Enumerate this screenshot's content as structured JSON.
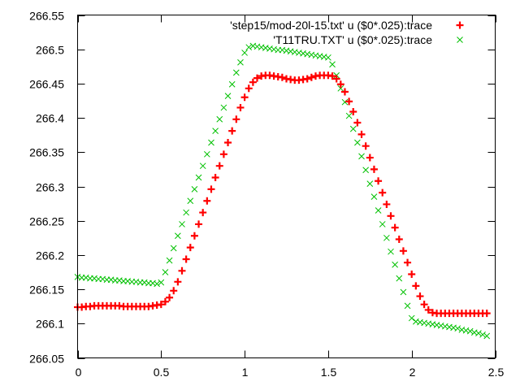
{
  "chart_data": {
    "type": "scatter",
    "title": "",
    "xlabel": "",
    "ylabel": "",
    "xlim": [
      0,
      2.5
    ],
    "ylim": [
      266.05,
      266.55
    ],
    "grid": false,
    "legend_position": "top-right",
    "x_ticks": [
      "0",
      "0.5",
      "1",
      "1.5",
      "2",
      "2.5"
    ],
    "x_tick_values": [
      0,
      0.5,
      1,
      1.5,
      2,
      2.5
    ],
    "y_ticks": [
      "266.05",
      "266.1",
      "266.15",
      "266.2",
      "266.25",
      "266.3",
      "266.35",
      "266.4",
      "266.45",
      "266.5",
      "266.55"
    ],
    "y_tick_values": [
      266.05,
      266.1,
      266.15,
      266.2,
      266.25,
      266.3,
      266.35,
      266.4,
      266.45,
      266.5,
      266.55
    ],
    "x_start": 0,
    "x_step": 0.025,
    "series": [
      {
        "name": "'step15/mod-20l-15.txt' u ($0*.025):trace",
        "marker": "plus",
        "color": "#ff0000",
        "y": [
          266.124,
          266.124,
          266.125,
          266.125,
          266.126,
          266.126,
          266.126,
          266.126,
          266.126,
          266.126,
          266.126,
          266.125,
          266.125,
          266.125,
          266.125,
          266.125,
          266.125,
          266.125,
          266.126,
          266.127,
          266.128,
          266.132,
          266.138,
          266.148,
          266.161,
          266.177,
          266.194,
          266.211,
          266.228,
          266.245,
          266.262,
          266.279,
          266.296,
          266.313,
          266.33,
          266.347,
          266.364,
          266.381,
          266.398,
          266.415,
          266.43,
          266.443,
          266.452,
          266.458,
          266.461,
          266.462,
          266.462,
          266.461,
          266.46,
          266.459,
          266.457,
          266.456,
          266.455,
          266.455,
          266.456,
          266.457,
          266.459,
          266.461,
          266.462,
          266.462,
          266.462,
          266.461,
          266.457,
          266.449,
          266.438,
          266.424,
          266.409,
          266.393,
          266.376,
          266.359,
          266.342,
          266.325,
          266.308,
          266.291,
          266.274,
          266.257,
          266.24,
          266.223,
          266.206,
          266.189,
          266.172,
          266.155,
          266.14,
          266.128,
          266.12,
          266.116,
          266.115,
          266.115,
          266.115,
          266.115,
          266.115,
          266.115,
          266.115,
          266.115,
          266.115,
          266.115,
          266.115,
          266.115,
          266.115
        ]
      },
      {
        "name": "'T11TRU.TXT' u ($0*.025):trace",
        "marker": "cross",
        "color": "#00c000",
        "y": [
          266.168,
          266.167,
          266.167,
          266.166,
          266.166,
          266.165,
          266.165,
          266.164,
          266.164,
          266.163,
          266.163,
          266.162,
          266.162,
          266.161,
          266.161,
          266.16,
          266.16,
          266.159,
          266.159,
          266.158,
          266.16,
          266.175,
          266.192,
          266.21,
          266.228,
          266.245,
          266.262,
          266.279,
          266.296,
          266.313,
          266.33,
          266.347,
          266.364,
          266.381,
          266.398,
          266.415,
          266.432,
          266.449,
          266.466,
          266.481,
          266.495,
          266.503,
          266.505,
          266.504,
          266.503,
          266.502,
          266.501,
          266.5,
          266.499,
          266.499,
          266.498,
          266.497,
          266.496,
          266.495,
          266.494,
          266.493,
          266.492,
          266.491,
          266.49,
          266.489,
          266.488,
          266.478,
          266.462,
          266.443,
          266.423,
          266.403,
          266.384,
          266.364,
          266.344,
          266.324,
          266.304,
          266.285,
          266.265,
          266.245,
          266.225,
          266.205,
          266.186,
          266.166,
          266.146,
          266.126,
          266.108,
          266.103,
          266.102,
          266.101,
          266.1,
          266.099,
          266.098,
          266.097,
          266.096,
          266.095,
          266.094,
          266.093,
          266.091,
          266.09,
          266.089,
          266.087,
          266.086,
          266.084,
          266.082
        ]
      }
    ]
  }
}
